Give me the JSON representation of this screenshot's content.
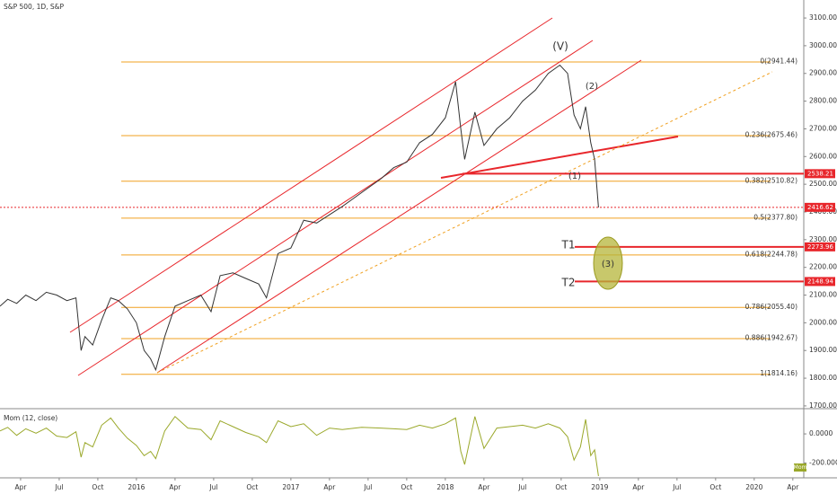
{
  "chart_data": [
    {
      "type": "line",
      "title": "S&P 500, 1D, S&P",
      "x": [
        1.4,
        2,
        2.7,
        3.4,
        4.2,
        5,
        5.8,
        6.6,
        7.3,
        7.7,
        8.0,
        8.6,
        9.3,
        10.0,
        10.6,
        11.3,
        12.0,
        12.6,
        13.1,
        13.5,
        14.2,
        15.0,
        16.0,
        17.0,
        17.8,
        18.5,
        19.5,
        20.5,
        21.5,
        22.1,
        23.0,
        24.0,
        25.0,
        26.0,
        27.0,
        28.0,
        29.5,
        31.0,
        32.0,
        33.0,
        34.0,
        35.0,
        36.0,
        36.8,
        37.2,
        37.5,
        38.3,
        39.0,
        40.0,
        41.0,
        42.0,
        43.0,
        44.0,
        44.9,
        45.5,
        46.0,
        46.5,
        46.9,
        47.3,
        47.6,
        47.9
      ],
      "series": [
        {
          "color": "#333333",
          "values": [
            2060,
            2085,
            2070,
            2100,
            2080,
            2110,
            2100,
            2080,
            2090,
            1900,
            1950,
            1920,
            2010,
            2090,
            2080,
            2050,
            2000,
            1900,
            1870,
            1830,
            1950,
            2060,
            2080,
            2100,
            2040,
            2170,
            2180,
            2160,
            2140,
            2090,
            2250,
            2270,
            2370,
            2360,
            2390,
            2420,
            2470,
            2520,
            2560,
            2580,
            2650,
            2680,
            2740,
            2870,
            2700,
            2590,
            2760,
            2640,
            2700,
            2740,
            2800,
            2840,
            2900,
            2930,
            2900,
            2750,
            2700,
            2780,
            2650,
            2590,
            2416.62
          ]
        }
      ],
      "xlim": [
        1.4,
        63.85
      ],
      "xticks": [
        {
          "value": 3,
          "label": "Apr"
        },
        {
          "value": 6,
          "label": "Jul"
        },
        {
          "value": 9,
          "label": "Oct"
        },
        {
          "value": 12,
          "label": "2016"
        },
        {
          "value": 15,
          "label": "Apr"
        },
        {
          "value": 18,
          "label": "Jul"
        },
        {
          "value": 21,
          "label": "Oct"
        },
        {
          "value": 24,
          "label": "2017"
        },
        {
          "value": 27,
          "label": "Apr"
        },
        {
          "value": 30,
          "label": "Jul"
        },
        {
          "value": 33,
          "label": "Oct"
        },
        {
          "value": 36,
          "label": "2018"
        },
        {
          "value": 39,
          "label": "Apr"
        },
        {
          "value": 42,
          "label": "Jul"
        },
        {
          "value": 45,
          "label": "Oct"
        },
        {
          "value": 48,
          "label": "2019"
        },
        {
          "value": 51,
          "label": "Apr"
        },
        {
          "value": 54,
          "label": "Jul"
        },
        {
          "value": 57,
          "label": "Oct"
        },
        {
          "value": 60,
          "label": "2020"
        },
        {
          "value": 63,
          "label": "Apr"
        }
      ],
      "ylim": [
        1690,
        3165
      ],
      "yticks": [
        {
          "value": 1700,
          "label": "1700.00"
        },
        {
          "value": 1800,
          "label": "1800.00"
        },
        {
          "value": 1900,
          "label": "1900.00"
        },
        {
          "value": 2000,
          "label": "2000.00"
        },
        {
          "value": 2100,
          "label": "2100.00"
        },
        {
          "value": 2200,
          "label": "2200.00"
        },
        {
          "value": 2300,
          "label": "2300.00"
        },
        {
          "value": 2400,
          "label": "2400.00"
        },
        {
          "value": 2500,
          "label": "2500.00"
        },
        {
          "value": 2600,
          "label": "2600.00"
        },
        {
          "value": 2700,
          "label": "2700.00"
        },
        {
          "value": 2800,
          "label": "2800.00"
        },
        {
          "value": 2900,
          "label": "2900.00"
        },
        {
          "value": 3000,
          "label": "3000.00"
        },
        {
          "value": 3100,
          "label": "3100.00"
        }
      ],
      "fib_levels": [
        {
          "value": 2941.44,
          "label": "0(2941.44)"
        },
        {
          "value": 2675.46,
          "label": "0.236(2675.46)"
        },
        {
          "value": 2510.82,
          "label": "0.382(2510.82)"
        },
        {
          "value": 2377.8,
          "label": "0.5(2377.80)"
        },
        {
          "value": 2244.78,
          "label": "0.618(2244.78)"
        },
        {
          "value": 2055.4,
          "label": "0.786(2055.40)"
        },
        {
          "value": 1942.67,
          "label": "0.886(1942.67)"
        },
        {
          "value": 1814.16,
          "label": "1(1814.16)"
        }
      ],
      "fib_color": "#f0a020",
      "price_lines": [
        2538.21,
        2273.96,
        2148.94
      ],
      "last_price": 2416.62,
      "line_color": "#e8262b",
      "annotations": [
        "(V)",
        "(2)",
        "(1)",
        "(3)",
        "T1",
        "T2"
      ]
    },
    {
      "type": "line",
      "series": [
        {
          "name": "Mom (12, close)",
          "color": "#9aa82a",
          "values": [
            20,
            45,
            -10,
            35,
            5,
            40,
            -15,
            -25,
            15,
            -160,
            -60,
            -90,
            60,
            110,
            40,
            -30,
            -80,
            -150,
            -120,
            -170,
            20,
            120,
            40,
            30,
            -40,
            90,
            50,
            10,
            -20,
            -60,
            90,
            50,
            70,
            -10,
            40,
            30,
            45,
            40,
            35,
            30,
            60,
            40,
            70,
            110,
            -120,
            -210,
            120,
            -100,
            40,
            50,
            60,
            40,
            70,
            40,
            -20,
            -180,
            -90,
            100,
            -150,
            -110,
            -290
          ]
        }
      ],
      "ylim": [
        -290,
        155
      ],
      "yticks": [
        {
          "value": 0,
          "label": "0.0000"
        },
        {
          "value": -200,
          "label": "-200.0000"
        }
      ],
      "tag": "Mom"
    }
  ]
}
